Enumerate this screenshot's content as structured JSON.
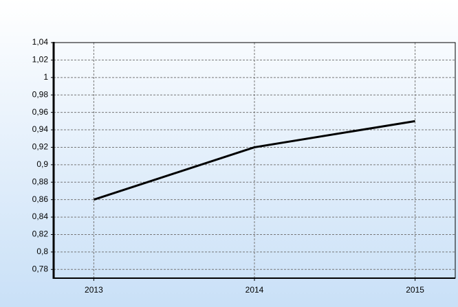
{
  "chart_data": {
    "type": "line",
    "x": [
      2013,
      2014,
      2015
    ],
    "values": [
      0.86,
      0.92,
      0.95
    ],
    "color": "#000000",
    "xlim": [
      2012.75,
      2015.25
    ],
    "xticks": [
      2013,
      2014,
      2015
    ],
    "ylim": [
      0.77,
      1.04
    ],
    "yticks": [
      {
        "value": 0.78,
        "label": "0,78"
      },
      {
        "value": 0.8,
        "label": "0,8"
      },
      {
        "value": 0.82,
        "label": "0,82"
      },
      {
        "value": 0.84,
        "label": "0,84"
      },
      {
        "value": 0.86,
        "label": "0,86"
      },
      {
        "value": 0.88,
        "label": "0,88"
      },
      {
        "value": 0.9,
        "label": "0,9"
      },
      {
        "value": 0.92,
        "label": "0,92"
      },
      {
        "value": 0.94,
        "label": "0,94"
      },
      {
        "value": 0.96,
        "label": "0,96"
      },
      {
        "value": 0.98,
        "label": "0,98"
      },
      {
        "value": 1,
        "label": "1"
      },
      {
        "value": 1.02,
        "label": "1,02"
      },
      {
        "value": 1.04,
        "label": "1,04"
      }
    ],
    "grid": true
  }
}
